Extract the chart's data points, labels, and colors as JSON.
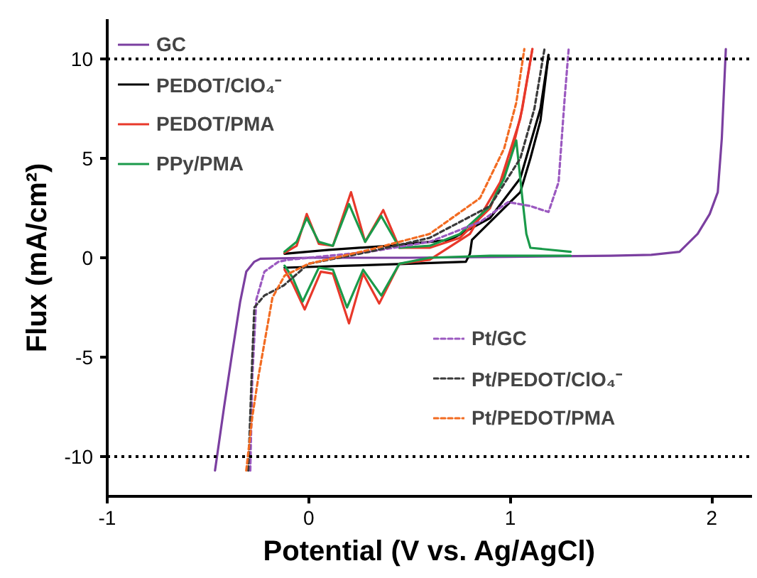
{
  "chart_data": {
    "type": "line",
    "xlabel": "Potential (V vs. Ag/AgCl)",
    "ylabel": "Flux (mA/cm²)",
    "xlim": [
      -1,
      2.2
    ],
    "ylim": [
      -12,
      12
    ],
    "xticks": [
      -1,
      0,
      1,
      2
    ],
    "yticks": [
      -10,
      -5,
      0,
      5,
      10
    ],
    "grid": false,
    "legend": "top left",
    "marker": "none",
    "ref_lines": [
      {
        "axis": "y",
        "value": 10,
        "color": "#000000",
        "line_style": "dotted"
      },
      {
        "axis": "y",
        "value": -10,
        "color": "#000000",
        "line_style": "dotted"
      }
    ],
    "series": [
      {
        "name": "GC",
        "color": "#7b3fa0",
        "line_style": "solid",
        "x": [
          -0.465,
          -0.42,
          -0.38,
          -0.34,
          -0.31,
          -0.27,
          -0.24,
          0.0,
          0.5,
          1.0,
          1.5,
          1.7,
          1.84,
          1.93,
          1.99,
          2.03,
          2.05,
          2.07
        ],
        "values": [
          -10.7,
          -7.5,
          -4.8,
          -2.2,
          -0.7,
          -0.2,
          -0.05,
          0.0,
          0.0,
          0.05,
          0.1,
          0.15,
          0.3,
          1.2,
          2.2,
          3.3,
          6.0,
          10.5
        ]
      },
      {
        "name": "PEDOT/ClO₄⁻",
        "color": "#000000",
        "line_style": "solid",
        "x": [
          -0.12,
          0.1,
          0.4,
          0.7,
          0.9,
          1.05,
          1.15,
          1.19
        ],
        "values": [
          0.2,
          0.4,
          0.6,
          0.9,
          2.0,
          4.0,
          7.5,
          10.2
        ]
      },
      {
        "color": "#000000",
        "line_style": "solid",
        "x": [
          -0.12,
          0.2,
          0.5,
          0.78,
          0.8,
          0.81,
          0.9,
          0.98,
          1.05,
          1.1,
          1.15,
          1.19
        ],
        "values": [
          -0.5,
          -0.4,
          -0.3,
          -0.2,
          0.2,
          0.9,
          1.8,
          2.6,
          3.3,
          5.0,
          6.9,
          10.2
        ]
      },
      {
        "name": "PEDOT/PMA",
        "color": "#e8382a",
        "line_style": "solid",
        "x": [
          -0.12,
          -0.06,
          -0.01,
          0.05,
          0.12,
          0.21,
          0.28,
          0.37,
          0.45,
          0.6,
          0.75,
          0.9,
          1.0,
          1.06,
          1.11
        ],
        "values": [
          0.25,
          0.6,
          2.2,
          0.7,
          0.6,
          3.3,
          0.8,
          2.4,
          0.5,
          0.5,
          1.0,
          2.5,
          5.0,
          7.5,
          10.5
        ]
      },
      {
        "color": "#e8382a",
        "line_style": "solid",
        "x": [
          -0.12,
          -0.08,
          -0.02,
          0.06,
          0.12,
          0.2,
          0.27,
          0.35,
          0.45,
          0.6,
          0.8,
          0.95,
          1.05,
          1.11
        ],
        "values": [
          -0.6,
          -1.3,
          -2.6,
          -0.7,
          -0.8,
          -3.3,
          -0.8,
          -2.3,
          -0.3,
          -0.1,
          1.2,
          3.8,
          7.0,
          10.5
        ]
      },
      {
        "name": "PPy/PMA",
        "color": "#1a9a4a",
        "line_style": "solid",
        "x": [
          -0.12,
          -0.06,
          -0.01,
          0.05,
          0.12,
          0.2,
          0.28,
          0.36,
          0.45,
          0.6,
          0.75,
          0.9,
          0.97,
          1.03,
          1.06,
          1.08,
          1.1,
          1.3
        ],
        "values": [
          0.3,
          0.8,
          2.0,
          0.8,
          0.6,
          2.7,
          0.8,
          2.1,
          0.5,
          0.6,
          1.2,
          2.6,
          4.0,
          5.9,
          3.0,
          1.2,
          0.5,
          0.3
        ]
      },
      {
        "color": "#1a9a4a",
        "line_style": "solid",
        "x": [
          -0.12,
          -0.08,
          -0.03,
          0.05,
          0.12,
          0.19,
          0.27,
          0.36,
          0.45,
          0.6,
          0.9,
          1.3
        ],
        "values": [
          -0.4,
          -1.0,
          -2.2,
          -0.5,
          -0.6,
          -2.5,
          -0.6,
          -1.9,
          -0.3,
          0.0,
          0.1,
          0.1
        ]
      },
      {
        "name": "Pt/GC",
        "color": "#9b59c0",
        "line_style": "dashed",
        "x": [
          -0.29,
          -0.28,
          -0.26,
          -0.22,
          -0.15,
          -0.1,
          0.3,
          0.6,
          0.85,
          0.99,
          1.1,
          1.19,
          1.24,
          1.27,
          1.29
        ],
        "values": [
          -10.7,
          -6.0,
          -2.1,
          -0.7,
          -0.2,
          -0.1,
          0.3,
          0.8,
          1.8,
          2.8,
          2.6,
          2.3,
          3.8,
          8.0,
          10.5
        ]
      },
      {
        "name": "Pt/PEDOT/ClO₄⁻",
        "color": "#3a3a3a",
        "line_style": "dashed",
        "x": [
          -0.3,
          -0.28,
          -0.27,
          -0.22,
          -0.125,
          0.0,
          0.3,
          0.6,
          0.9,
          1.05,
          1.12,
          1.17
        ],
        "values": [
          -10.7,
          -5.0,
          -2.5,
          -1.9,
          -1.4,
          -0.3,
          0.3,
          1.0,
          2.6,
          5.0,
          7.5,
          10.5
        ]
      },
      {
        "name": "Pt/PEDOT/PMA",
        "color": "#f26b21",
        "line_style": "dashed",
        "x": [
          -0.31,
          -0.28,
          -0.25,
          -0.18,
          -0.12,
          0.0,
          0.3,
          0.6,
          0.85,
          0.97,
          1.03,
          1.07
        ],
        "values": [
          -10.7,
          -8.0,
          -6.0,
          -2.0,
          -0.9,
          -0.3,
          0.4,
          1.2,
          3.0,
          5.5,
          7.8,
          10.5
        ]
      }
    ]
  }
}
